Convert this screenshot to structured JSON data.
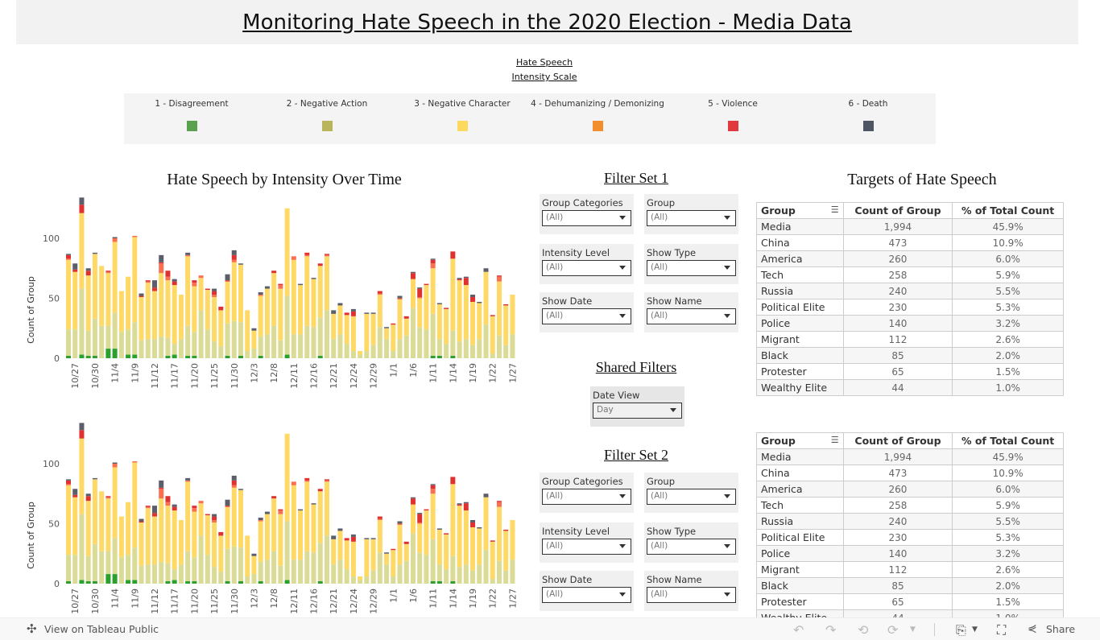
{
  "header": {
    "title": "Monitoring Hate Speech in the 2020 Election - Media Data"
  },
  "legend": {
    "heading_line1": "Hate Speech",
    "heading_line2": "Intensity Scale",
    "items": [
      {
        "label": "1 - Disagreement",
        "color": "#59a14f"
      },
      {
        "label": "2 - Negative Action",
        "color": "#bab45a"
      },
      {
        "label": "3 - Negative Character",
        "color": "#fdd95f"
      },
      {
        "label": "4 - Dehumanizing / Demonizing",
        "color": "#f28e2b"
      },
      {
        "label": "5 - Violence",
        "color": "#e0393e"
      },
      {
        "label": "6 - Death",
        "color": "#4e5565"
      }
    ]
  },
  "chart_data": {
    "type": "bar",
    "stacked": true,
    "title": "Hate Speech by Intensity Over Time",
    "xlabel": "",
    "ylabel": "Count of Group",
    "ylim": [
      0,
      135
    ],
    "yticks": [
      0,
      50,
      100
    ],
    "grid": false,
    "categories": [
      "",
      "10/27",
      "",
      "",
      "10/30",
      "",
      "",
      "11/4",
      "",
      "",
      "11/9",
      "",
      "",
      "11/12",
      "",
      "",
      "11/17",
      "",
      "",
      "11/20",
      "",
      "",
      "11/25",
      "",
      "",
      "11/30",
      "",
      "",
      "12/3",
      "",
      "",
      "12/8",
      "",
      "",
      "12/11",
      "",
      "",
      "12/16",
      "",
      "",
      "12/21",
      "",
      "",
      "12/24",
      "",
      "",
      "12/29",
      "",
      "",
      "1/1",
      "",
      "",
      "1/6",
      "",
      "",
      "1/11",
      "",
      "",
      "1/14",
      "",
      "",
      "1/19",
      "",
      "",
      "1/22",
      "",
      "",
      "1/27"
    ],
    "series": [
      {
        "name": "1 - Disagreement",
        "color": "#2ca02c",
        "values": [
          2,
          0,
          3,
          2,
          2,
          0,
          8,
          8,
          0,
          3,
          3,
          0,
          0,
          0,
          0,
          2,
          3,
          0,
          2,
          2,
          0,
          0,
          0,
          0,
          2,
          0,
          2,
          0,
          0,
          2,
          0,
          0,
          0,
          3,
          0,
          0,
          0,
          0,
          2,
          0,
          0,
          0,
          0,
          0,
          0,
          0,
          0,
          0,
          0,
          0,
          0,
          0,
          0,
          0,
          0,
          2,
          2,
          0,
          2,
          0,
          0,
          0,
          0,
          0,
          0,
          0,
          0,
          0
        ]
      },
      {
        "name": "2 - Negative Action",
        "color": "#dadb96",
        "values": [
          22,
          24,
          55,
          21,
          31,
          27,
          19,
          30,
          22,
          21,
          27,
          15,
          16,
          16,
          18,
          15,
          9,
          16,
          25,
          20,
          40,
          24,
          14,
          10,
          27,
          31,
          28,
          6,
          8,
          16,
          20,
          27,
          15,
          49,
          20,
          20,
          27,
          26,
          32,
          40,
          16,
          20,
          12,
          6,
          3,
          6,
          11,
          26,
          16,
          6,
          16,
          19,
          42,
          26,
          24,
          35,
          14,
          12,
          21,
          14,
          16,
          11,
          16,
          28,
          4,
          19,
          11,
          20
        ]
      },
      {
        "name": "3 - Negative Character",
        "color": "#fed966",
        "values": [
          58,
          48,
          63,
          46,
          54,
          50,
          44,
          59,
          34,
          44,
          71,
          36,
          47,
          40,
          53,
          48,
          49,
          37,
          58,
          38,
          27,
          33,
          37,
          30,
          35,
          49,
          48,
          34,
          15,
          34,
          38,
          44,
          43,
          73,
          62,
          41,
          58,
          40,
          43,
          45,
          21,
          24,
          24,
          29,
          3,
          31,
          26,
          27,
          9,
          22,
          33,
          14,
          24,
          24,
          37,
          38,
          29,
          29,
          60,
          51,
          45,
          36,
          30,
          44,
          31,
          45,
          33,
          33
        ]
      },
      {
        "name": "4 - Dehumanizing / Demonizing",
        "color": "#fb6f50",
        "values": [
          1,
          0,
          0,
          0,
          0,
          0,
          1,
          3,
          0,
          0,
          1,
          0,
          1,
          0,
          8,
          3,
          0,
          0,
          1,
          3,
          2,
          0,
          2,
          0,
          0,
          2,
          0,
          0,
          0,
          1,
          0,
          0,
          3,
          0,
          3,
          0,
          1,
          0,
          0,
          1,
          0,
          0,
          0,
          0,
          0,
          0,
          0,
          1,
          0,
          0,
          1,
          0,
          0,
          1,
          0,
          4,
          0,
          0,
          0,
          0,
          0,
          0,
          0,
          0,
          0,
          4,
          0,
          0
        ]
      },
      {
        "name": "5 - Violence",
        "color": "#e03131",
        "values": [
          3,
          2,
          7,
          4,
          0,
          0,
          1,
          0,
          0,
          0,
          0,
          1,
          1,
          3,
          1,
          5,
          3,
          0,
          0,
          2,
          0,
          1,
          3,
          3,
          1,
          4,
          0,
          0,
          0,
          0,
          0,
          2,
          1,
          0,
          0,
          0,
          2,
          0,
          2,
          1,
          0,
          0,
          2,
          4,
          0,
          0,
          0,
          2,
          0,
          1,
          0,
          2,
          5,
          7,
          1,
          3,
          0,
          1,
          6,
          1,
          6,
          4,
          0,
          0,
          1,
          1,
          1,
          0
        ]
      },
      {
        "name": "6 - Death",
        "color": "#5b5f69",
        "values": [
          1,
          5,
          6,
          2,
          1,
          0,
          0,
          1,
          0,
          0,
          0,
          2,
          0,
          6,
          6,
          0,
          2,
          0,
          2,
          0,
          0,
          0,
          2,
          0,
          5,
          4,
          1,
          0,
          2,
          2,
          2,
          0,
          0,
          0,
          0,
          1,
          0,
          1,
          0,
          0,
          3,
          2,
          0,
          2,
          0,
          1,
          1,
          0,
          1,
          0,
          2,
          0,
          1,
          1,
          0,
          1,
          1,
          0,
          0,
          1,
          1,
          2,
          1,
          3,
          0,
          0,
          0,
          0
        ]
      }
    ]
  },
  "filters": {
    "set1_title": "Filter Set 1",
    "set2_title": "Filter Set 2",
    "shared_title": "Shared Filters",
    "items": [
      {
        "label": "Group Categories",
        "value": "(All)"
      },
      {
        "label": "Group",
        "value": "(All)"
      },
      {
        "label": "Intensity Level",
        "value": "(All)"
      },
      {
        "label": "Show Type",
        "value": "(All)"
      },
      {
        "label": "Show Date",
        "value": "(All)"
      },
      {
        "label": "Show Name",
        "value": "(All)"
      }
    ],
    "date_view": {
      "label": "Date View",
      "value": "Day"
    }
  },
  "targets": {
    "title": "Targets of Hate Speech",
    "columns": [
      "Group",
      "Count of Group",
      "% of Total Count"
    ],
    "rows": [
      [
        "Media",
        "1,994",
        "45.9%"
      ],
      [
        "China",
        "473",
        "10.9%"
      ],
      [
        "America",
        "260",
        "6.0%"
      ],
      [
        "Tech",
        "258",
        "5.9%"
      ],
      [
        "Russia",
        "240",
        "5.5%"
      ],
      [
        "Political Elite",
        "230",
        "5.3%"
      ],
      [
        "Police",
        "140",
        "3.2%"
      ],
      [
        "Migrant",
        "112",
        "2.6%"
      ],
      [
        "Black",
        "85",
        "2.0%"
      ],
      [
        "Protester",
        "65",
        "1.5%"
      ],
      [
        "Wealthy Elite",
        "44",
        "1.0%"
      ]
    ]
  },
  "footer": {
    "view_label": "View on Tableau Public",
    "share_label": "Share"
  }
}
